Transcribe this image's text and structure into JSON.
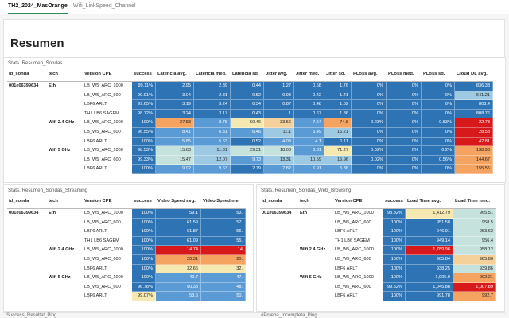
{
  "tabs": [
    "TH2_2024_MasOrange",
    "Wifi_LinkSpeed_Channel"
  ],
  "page_title": "Resumen",
  "sondas": {
    "title": "Stats. Resumen_Sondas",
    "headers": [
      "id_sonda",
      "tech",
      "Version CPE",
      "success",
      "Latencia avg.",
      "Latencia med.",
      "Latencia sd.",
      "Jitter avg.",
      "Jitter med.",
      "Jitter sd.",
      "PLoss avg.",
      "PLoss med.",
      "PLoss sd.",
      "Cloud DL avg."
    ],
    "rows": [
      [
        {
          "t": "001e06399634",
          "b": 1
        },
        {
          "t": "Eth",
          "b": 1
        },
        {
          "t": "LB_W5_ARC_1000"
        },
        {
          "t": "99.11%",
          "c": "#2e74b5"
        },
        {
          "t": "2.95",
          "c": "#2e74b5"
        },
        {
          "t": "2.89",
          "c": "#2e74b5"
        },
        {
          "t": "0.44",
          "c": "#2e74b5"
        },
        {
          "t": "1.27",
          "c": "#2e74b5"
        },
        {
          "t": "0.58",
          "c": "#2e74b5"
        },
        {
          "t": "1.76",
          "c": "#2e74b5"
        },
        {
          "t": "0%",
          "c": "#2e74b5"
        },
        {
          "t": "0%",
          "c": "#2e74b5"
        },
        {
          "t": "0%",
          "c": "#2e74b5"
        },
        {
          "t": "836.33",
          "c": "#2e74b5"
        }
      ],
      [
        {
          "t": ""
        },
        {
          "t": ""
        },
        {
          "t": "LB_W5_ARC_600"
        },
        {
          "t": "99.91%",
          "c": "#2e74b5"
        },
        {
          "t": "3.04",
          "c": "#2e74b5"
        },
        {
          "t": "2.81",
          "c": "#2e74b5"
        },
        {
          "t": "0.52",
          "c": "#2e74b5"
        },
        {
          "t": "0.93",
          "c": "#2e74b5"
        },
        {
          "t": "0.42",
          "c": "#2e74b5"
        },
        {
          "t": "1.41",
          "c": "#2e74b5"
        },
        {
          "t": "0%",
          "c": "#2e74b5"
        },
        {
          "t": "0%",
          "c": "#2e74b5"
        },
        {
          "t": "0%",
          "c": "#2e74b5"
        },
        {
          "t": "641.21",
          "c": "#9ec9e2"
        }
      ],
      [
        {
          "t": ""
        },
        {
          "t": ""
        },
        {
          "t": "LBF6 ARLT"
        },
        {
          "t": "99.65%",
          "c": "#2e74b5"
        },
        {
          "t": "3.19",
          "c": "#2e74b5"
        },
        {
          "t": "3.24",
          "c": "#2e74b5"
        },
        {
          "t": "0.34",
          "c": "#2e74b5"
        },
        {
          "t": "0.87",
          "c": "#2e74b5"
        },
        {
          "t": "0.48",
          "c": "#2e74b5"
        },
        {
          "t": "1.02",
          "c": "#2e74b5"
        },
        {
          "t": "0%",
          "c": "#2e74b5"
        },
        {
          "t": "0%",
          "c": "#2e74b5"
        },
        {
          "t": "0%",
          "c": "#2e74b5"
        },
        {
          "t": "803.4",
          "c": "#2e74b5"
        }
      ],
      [
        {
          "t": ""
        },
        {
          "t": ""
        },
        {
          "t": "TH1 LB6 SAGEM"
        },
        {
          "t": "98.72%",
          "c": "#2e74b5"
        },
        {
          "t": "3.24",
          "c": "#2e74b5"
        },
        {
          "t": "3.17",
          "c": "#2e74b5"
        },
        {
          "t": "0.43",
          "c": "#2e74b5"
        },
        {
          "t": "1",
          "c": "#2e74b5"
        },
        {
          "t": "0.67",
          "c": "#2e74b5"
        },
        {
          "t": "1.86",
          "c": "#2e74b5"
        },
        {
          "t": "0%",
          "c": "#2e74b5"
        },
        {
          "t": "0%",
          "c": "#2e74b5"
        },
        {
          "t": "0%",
          "c": "#2e74b5"
        },
        {
          "t": "808.76",
          "c": "#2e74b5"
        }
      ],
      [
        {
          "t": ""
        },
        {
          "t": "Wifi 2.4 GHz",
          "b": 1
        },
        {
          "t": "LB_W5_ARC_1000"
        },
        {
          "t": "100%",
          "c": "#2e74b5"
        },
        {
          "t": "27.53",
          "c": "#f4a460"
        },
        {
          "t": "8.78",
          "c": "#5b9bd5"
        },
        {
          "t": "50.46",
          "c": "#f6e8b1"
        },
        {
          "t": "33.56",
          "c": "#f4d09a"
        },
        {
          "t": "7.64",
          "c": "#5b9bd5"
        },
        {
          "t": "74.8",
          "c": "#f4a460"
        },
        {
          "t": "0.23%",
          "c": "#2e74b5"
        },
        {
          "t": "0%",
          "c": "#2e74b5"
        },
        {
          "t": "0.83%",
          "c": "#2e74b5"
        },
        {
          "t": "22.78",
          "c": "#d7191c"
        }
      ],
      [
        {
          "t": ""
        },
        {
          "t": ""
        },
        {
          "t": "LB_W5_ARC_600"
        },
        {
          "t": "96.55%",
          "c": "#2e74b5"
        },
        {
          "t": "8.41",
          "c": "#5b9bd5"
        },
        {
          "t": "6.31",
          "c": "#5b9bd5"
        },
        {
          "t": "6.46",
          "c": "#5b9bd5"
        },
        {
          "t": "11.1",
          "c": "#9ec9e2"
        },
        {
          "t": "5.49",
          "c": "#5b9bd5"
        },
        {
          "t": "16.21",
          "c": "#9ec9e2"
        },
        {
          "t": "0%",
          "c": "#2e74b5"
        },
        {
          "t": "0%",
          "c": "#2e74b5"
        },
        {
          "t": "0%",
          "c": "#2e74b5"
        },
        {
          "t": "28.58",
          "c": "#d7191c"
        }
      ],
      [
        {
          "t": ""
        },
        {
          "t": ""
        },
        {
          "t": "LBF6 ARLT"
        },
        {
          "t": "100%",
          "c": "#2e74b5"
        },
        {
          "t": "5.65",
          "c": "#5b9bd5"
        },
        {
          "t": "5.63",
          "c": "#5b9bd5"
        },
        {
          "t": "0.52",
          "c": "#2e74b5"
        },
        {
          "t": "4.03",
          "c": "#5b9bd5"
        },
        {
          "t": "4.1",
          "c": "#5b9bd5"
        },
        {
          "t": "1.11",
          "c": "#2e74b5"
        },
        {
          "t": "0%",
          "c": "#2e74b5"
        },
        {
          "t": "0%",
          "c": "#2e74b5"
        },
        {
          "t": "0%",
          "c": "#2e74b5"
        },
        {
          "t": "42.81",
          "c": "#d7191c"
        }
      ],
      [
        {
          "t": ""
        },
        {
          "t": "Wifi 5 GHz",
          "b": 1
        },
        {
          "t": "LB_W5_ARC_1000"
        },
        {
          "t": "98.53%",
          "c": "#2e74b5"
        },
        {
          "t": "15.63",
          "c": "#c6e2dd"
        },
        {
          "t": "11.31",
          "c": "#9ec9e2"
        },
        {
          "t": "29.31",
          "c": "#c6e2dd"
        },
        {
          "t": "18.08",
          "c": "#c6e2dd"
        },
        {
          "t": "8.31",
          "c": "#5b9bd5"
        },
        {
          "t": "71.27",
          "c": "#f6e8b1"
        },
        {
          "t": "0.02%",
          "c": "#2e74b5"
        },
        {
          "t": "0%",
          "c": "#2e74b5"
        },
        {
          "t": "0.2%",
          "c": "#2e74b5"
        },
        {
          "t": "138.93",
          "c": "#f4a460"
        }
      ],
      [
        {
          "t": ""
        },
        {
          "t": ""
        },
        {
          "t": "LB_W5_ARC_600"
        },
        {
          "t": "99.33%",
          "c": "#2e74b5"
        },
        {
          "t": "15.47",
          "c": "#c6e2dd"
        },
        {
          "t": "12.07",
          "c": "#9ec9e2"
        },
        {
          "t": "9.73",
          "c": "#5b9bd5"
        },
        {
          "t": "13.31",
          "c": "#9ec9e2"
        },
        {
          "t": "10.59",
          "c": "#9ec9e2"
        },
        {
          "t": "15.96",
          "c": "#9ec9e2"
        },
        {
          "t": "0.02%",
          "c": "#2e74b5"
        },
        {
          "t": "0%",
          "c": "#2e74b5"
        },
        {
          "t": "0.56%",
          "c": "#2e74b5"
        },
        {
          "t": "144.67",
          "c": "#f4a460"
        }
      ],
      [
        {
          "t": ""
        },
        {
          "t": ""
        },
        {
          "t": "LBF6 ARLT"
        },
        {
          "t": "100%",
          "c": "#2e74b5"
        },
        {
          "t": "9.92",
          "c": "#5b9bd5"
        },
        {
          "t": "9.63",
          "c": "#5b9bd5"
        },
        {
          "t": "2.79",
          "c": "#2e74b5"
        },
        {
          "t": "7.82",
          "c": "#5b9bd5"
        },
        {
          "t": "6.91",
          "c": "#5b9bd5"
        },
        {
          "t": "5.86",
          "c": "#5b9bd5"
        },
        {
          "t": "0%",
          "c": "#2e74b5"
        },
        {
          "t": "0%",
          "c": "#2e74b5"
        },
        {
          "t": "0%",
          "c": "#2e74b5"
        },
        {
          "t": "155.56",
          "c": "#f4a460"
        }
      ]
    ]
  },
  "streaming": {
    "title": "Stats. Resumen_Sondas_Streaming",
    "headers": [
      "id_sonda",
      "tech",
      "Version CPE",
      "success",
      "Video Speed avg.",
      "Video Speed me"
    ],
    "rows": [
      [
        {
          "t": "001e06399634",
          "b": 1
        },
        {
          "t": "Eth",
          "b": 1
        },
        {
          "t": "LB_W5_ARC_1000"
        },
        {
          "t": "100%",
          "c": "#2e74b5"
        },
        {
          "t": "59.1",
          "c": "#2e74b5"
        },
        {
          "t": "53.",
          "c": "#2e74b5"
        }
      ],
      [
        {
          "t": ""
        },
        {
          "t": ""
        },
        {
          "t": "LB_W5_ARC_600"
        },
        {
          "t": "100%",
          "c": "#2e74b5"
        },
        {
          "t": "61.59",
          "c": "#2e74b5"
        },
        {
          "t": "57.",
          "c": "#2e74b5"
        }
      ],
      [
        {
          "t": ""
        },
        {
          "t": ""
        },
        {
          "t": "LBF6 ARLT"
        },
        {
          "t": "100%",
          "c": "#2e74b5"
        },
        {
          "t": "61.87",
          "c": "#2e74b5"
        },
        {
          "t": "56.",
          "c": "#2e74b5"
        }
      ],
      [
        {
          "t": ""
        },
        {
          "t": ""
        },
        {
          "t": "TH1 LB6 SAGEM"
        },
        {
          "t": "100%",
          "c": "#2e74b5"
        },
        {
          "t": "61.09",
          "c": "#2e74b5"
        },
        {
          "t": "55.",
          "c": "#2e74b5"
        }
      ],
      [
        {
          "t": ""
        },
        {
          "t": "Wifi 2.4 GHz",
          "b": 1
        },
        {
          "t": "LB_W5_ARC_1000"
        },
        {
          "t": "100%",
          "c": "#2e74b5"
        },
        {
          "t": "14.74",
          "c": "#d7191c"
        },
        {
          "t": "14",
          "c": "#d7191c"
        }
      ],
      [
        {
          "t": ""
        },
        {
          "t": ""
        },
        {
          "t": "LB_W5_ARC_600"
        },
        {
          "t": "100%",
          "c": "#2e74b5"
        },
        {
          "t": "20.31",
          "c": "#f4a460"
        },
        {
          "t": "20.",
          "c": "#f4a460"
        }
      ],
      [
        {
          "t": ""
        },
        {
          "t": ""
        },
        {
          "t": "LBF6 ARLT"
        },
        {
          "t": "100%",
          "c": "#2e74b5"
        },
        {
          "t": "32.66",
          "c": "#f6e8b1"
        },
        {
          "t": "32.",
          "c": "#f6e8b1"
        }
      ],
      [
        {
          "t": ""
        },
        {
          "t": "Wifi 5 GHz",
          "b": 1
        },
        {
          "t": "LB_W5_ARC_1000"
        },
        {
          "t": "100%",
          "c": "#2e74b5"
        },
        {
          "t": "49.7",
          "c": "#5b9bd5"
        },
        {
          "t": "47.",
          "c": "#5b9bd5"
        }
      ],
      [
        {
          "t": ""
        },
        {
          "t": ""
        },
        {
          "t": "LB_W5_ARC_600"
        },
        {
          "t": "96.78%",
          "c": "#2e74b5"
        },
        {
          "t": "50.38",
          "c": "#5b9bd5"
        },
        {
          "t": "48.",
          "c": "#5b9bd5"
        }
      ],
      [
        {
          "t": ""
        },
        {
          "t": ""
        },
        {
          "t": "LBF6 ARLT"
        },
        {
          "t": "99.07%",
          "c": "#f6e8b1"
        },
        {
          "t": "53.6",
          "c": "#5b9bd5"
        },
        {
          "t": "50.",
          "c": "#5b9bd5"
        }
      ]
    ]
  },
  "web": {
    "title": "Stats. Resumen_Sondas_Web_Browsing",
    "headers": [
      "id_sonda",
      "tech",
      "Version CPE",
      "success",
      "Load Time avg.",
      "Load Time med."
    ],
    "rows": [
      [
        {
          "t": "001e06399634",
          "b": 1
        },
        {
          "t": "Eth",
          "b": 1
        },
        {
          "t": "LB_W5_ARC_1000"
        },
        {
          "t": "98.82%",
          "c": "#2e74b5"
        },
        {
          "t": "1,412.79",
          "c": "#f6e8b1"
        },
        {
          "t": "965.51",
          "c": "#c6e2dd"
        }
      ],
      [
        {
          "t": ""
        },
        {
          "t": ""
        },
        {
          "t": "LB_W5_ARC_600"
        },
        {
          "t": "100%",
          "c": "#2e74b5"
        },
        {
          "t": "951.58",
          "c": "#2e74b5"
        },
        {
          "t": "958.5",
          "c": "#c6e2dd"
        }
      ],
      [
        {
          "t": ""
        },
        {
          "t": ""
        },
        {
          "t": "LBF6 ARLT"
        },
        {
          "t": "100%",
          "c": "#2e74b5"
        },
        {
          "t": "946.91",
          "c": "#2e74b5"
        },
        {
          "t": "953.62",
          "c": "#c6e2dd"
        }
      ],
      [
        {
          "t": ""
        },
        {
          "t": ""
        },
        {
          "t": "TH1 LB6 SAGEM"
        },
        {
          "t": "100%",
          "c": "#2e74b5"
        },
        {
          "t": "949.14",
          "c": "#2e74b5"
        },
        {
          "t": "956.4",
          "c": "#c6e2dd"
        }
      ],
      [
        {
          "t": ""
        },
        {
          "t": "Wifi 2.4 GHz",
          "b": 1
        },
        {
          "t": "LB_W5_ARC_1000"
        },
        {
          "t": "100%",
          "c": "#2e74b5"
        },
        {
          "t": "1,789.96",
          "c": "#d7191c"
        },
        {
          "t": "958.12",
          "c": "#c6e2dd"
        }
      ],
      [
        {
          "t": ""
        },
        {
          "t": ""
        },
        {
          "t": "LB_W5_ARC_600"
        },
        {
          "t": "100%",
          "c": "#2e74b5"
        },
        {
          "t": "985.84",
          "c": "#2e74b5"
        },
        {
          "t": "985.86",
          "c": "#f4d09a"
        }
      ],
      [
        {
          "t": ""
        },
        {
          "t": ""
        },
        {
          "t": "LBF6 ARLT"
        },
        {
          "t": "100%",
          "c": "#2e74b5"
        },
        {
          "t": "938.25",
          "c": "#2e74b5"
        },
        {
          "t": "939.86",
          "c": "#c6e2dd"
        }
      ],
      [
        {
          "t": ""
        },
        {
          "t": "Wifi 5 GHz",
          "b": 1
        },
        {
          "t": "LB_W5_ARC_1000"
        },
        {
          "t": "100%",
          "c": "#2e74b5"
        },
        {
          "t": "1,005.9",
          "c": "#2e74b5"
        },
        {
          "t": "992.21",
          "c": "#f4a460"
        }
      ],
      [
        {
          "t": ""
        },
        {
          "t": ""
        },
        {
          "t": "LB_W5_ARC_600"
        },
        {
          "t": "99.52%",
          "c": "#2e74b5"
        },
        {
          "t": "1,045.88",
          "c": "#2e74b5"
        },
        {
          "t": "1,007.89",
          "c": "#d7191c"
        }
      ],
      [
        {
          "t": ""
        },
        {
          "t": ""
        },
        {
          "t": "LBF6 ARLT"
        },
        {
          "t": "100%",
          "c": "#2e74b5"
        },
        {
          "t": "991.78",
          "c": "#2e74b5"
        },
        {
          "t": "992.7",
          "c": "#f4a460"
        }
      ]
    ]
  },
  "bottom": {
    "left_title": "Success_Resultat_Ping",
    "right_title": "#Prueba_Incompleta_Ping"
  }
}
